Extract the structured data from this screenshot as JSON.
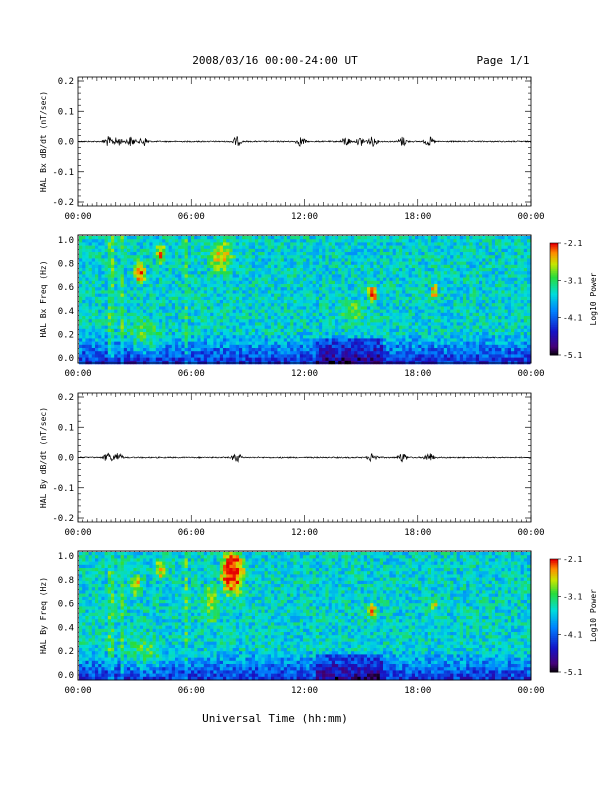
{
  "header": {
    "title": "2008/03/16  00:00-24:00 UT",
    "page": "Page 1/1"
  },
  "footer": {
    "xlabel": "Universal Time (hh:mm)"
  },
  "colorbar": {
    "ticks": [
      "-2.1",
      "-3.1",
      "-4.1",
      "-5.1"
    ],
    "label": "Log10 Power"
  },
  "chart_data": [
    {
      "type": "line",
      "ylabel": "HAL Bx dB/dt (nT/sec)",
      "ylim": [
        -0.2,
        0.2
      ],
      "yticks": [
        "0.2",
        "0.1",
        "0.0",
        "-0.1",
        "-0.2"
      ],
      "xticks": [
        "00:00",
        "06:00",
        "12:00",
        "18:00",
        "00:00"
      ],
      "series_note": "",
      "bursts_hours": [
        1.6,
        2.1,
        2.8,
        3.5,
        8.4,
        11.8,
        14.2,
        15.0,
        15.6,
        17.2,
        18.6
      ]
    },
    {
      "type": "heatmap",
      "ylabel": "HAL Bx Freq (Hz)",
      "ylim": [
        0.0,
        1.0
      ],
      "yticks": [
        "1.0",
        "0.8",
        "0.6",
        "0.4",
        "0.2",
        "0.0"
      ],
      "xticks": [
        "00:00",
        "06:00",
        "12:00",
        "18:00",
        "00:00"
      ],
      "zlim": [
        -5.1,
        -2.1
      ]
    },
    {
      "type": "line",
      "ylabel": "HAL By dB/dt (nT/sec)",
      "ylim": [
        -0.2,
        0.2
      ],
      "yticks": [
        "0.2",
        "0.1",
        "0.0",
        "-0.1",
        "-0.2"
      ],
      "xticks": [
        "00:00",
        "06:00",
        "12:00",
        "18:00",
        "00:00"
      ],
      "bursts_hours": [
        1.6,
        2.1,
        8.4,
        15.6,
        17.2,
        18.6
      ]
    },
    {
      "type": "heatmap",
      "ylabel": "HAL By Freq (Hz)",
      "ylim": [
        0.0,
        1.0
      ],
      "yticks": [
        "1.0",
        "0.8",
        "0.6",
        "0.4",
        "0.2",
        "0.0"
      ],
      "xticks": [
        "00:00",
        "06:00",
        "12:00",
        "18:00",
        "00:00"
      ],
      "zlim": [
        -5.1,
        -2.1
      ]
    }
  ]
}
